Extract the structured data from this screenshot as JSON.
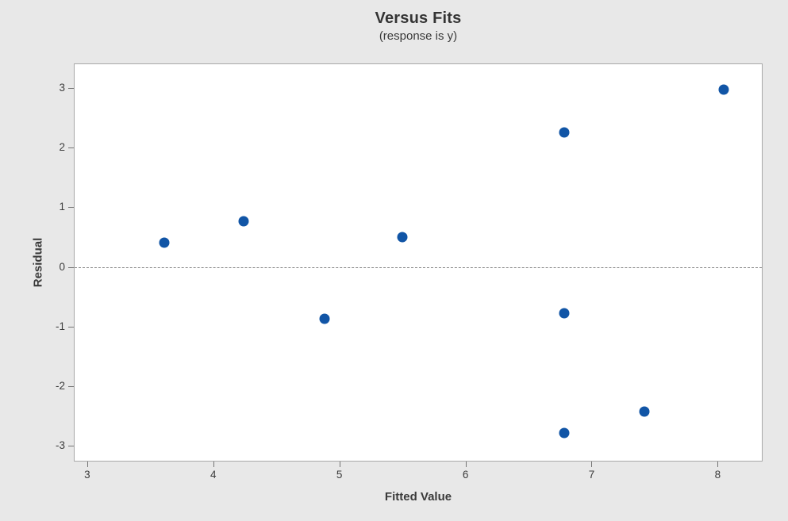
{
  "chart_data": {
    "type": "scatter",
    "title": "Versus Fits",
    "subtitle": "(response is y)",
    "xlabel": "Fitted Value",
    "ylabel": "Residual",
    "xlim": [
      2.9,
      8.35
    ],
    "ylim": [
      -3.25,
      3.4
    ],
    "x_ticks": [
      3,
      4,
      5,
      6,
      7,
      8
    ],
    "y_ticks": [
      -3,
      -2,
      -1,
      0,
      1,
      2,
      3
    ],
    "grid": false,
    "legend": "none",
    "reference_line_y": 0,
    "points": [
      {
        "x": 3.61,
        "y": 0.41
      },
      {
        "x": 4.24,
        "y": 0.77
      },
      {
        "x": 4.88,
        "y": -0.87
      },
      {
        "x": 5.5,
        "y": 0.5
      },
      {
        "x": 6.78,
        "y": 2.25
      },
      {
        "x": 6.78,
        "y": -0.78
      },
      {
        "x": 6.78,
        "y": -2.79
      },
      {
        "x": 7.42,
        "y": -2.43
      },
      {
        "x": 8.05,
        "y": 2.97
      }
    ],
    "colors": {
      "point": "#1155a6",
      "background": "#e8e8e8",
      "plot_background": "#ffffff",
      "frame_border": "#a8a8a8",
      "zero_line": "#8f8f8f",
      "tick": "#757575",
      "text": "#3a3a3a"
    }
  }
}
